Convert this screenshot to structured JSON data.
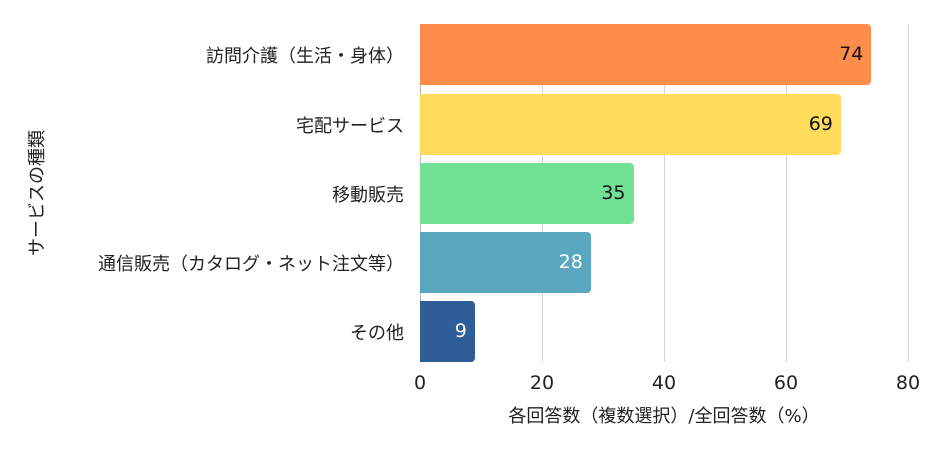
{
  "chart_data": {
    "type": "bar",
    "orientation": "horizontal",
    "categories": [
      "訪問介護（生活・身体）",
      "宅配サービス",
      "移動販売",
      "通信販売（カタログ・ネット注文等）",
      "その他"
    ],
    "values": [
      74,
      69,
      35,
      28,
      9
    ],
    "colors": [
      "#fe8c4a",
      "#fedb5a",
      "#72e095",
      "#59a8bf",
      "#2e5e98"
    ],
    "label_colors": [
      "#111111",
      "#111111",
      "#111111",
      "#ffffff",
      "#ffffff"
    ],
    "title": "",
    "xlabel": "各回答数（複数選択）/全回答数（%）",
    "ylabel": "サービスの種類",
    "xlim": [
      0,
      80
    ],
    "xticks": [
      0,
      20,
      40,
      60,
      80
    ],
    "grid": "vertical",
    "legend": "none"
  }
}
